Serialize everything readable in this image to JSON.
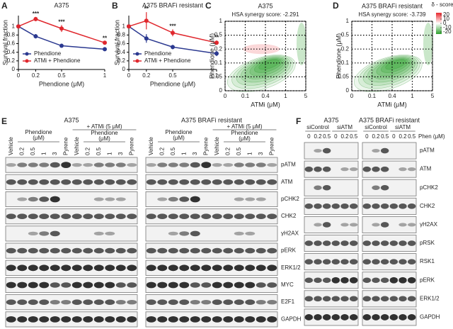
{
  "chart_data": [
    {
      "type": "line",
      "panel_label": "A",
      "title": "A375",
      "xlabel": "Phendione (μM)",
      "ylabel": "Survival fraction",
      "x": [
        0,
        0.2,
        0.5,
        1
      ],
      "xlim": [
        0,
        1
      ],
      "xticks": [
        0,
        0.2,
        0.5,
        1
      ],
      "ylim": [
        0,
        1.25
      ],
      "yticks": [
        0,
        0.2,
        0.4,
        0.6,
        0.8,
        1
      ],
      "series": [
        {
          "name": "Phendione",
          "color": "#2b3990",
          "values": [
            1,
            0.77,
            0.55,
            0.47
          ],
          "errors": [
            0,
            0.05,
            0.04,
            0.04
          ]
        },
        {
          "name": "ATMi + Phendione",
          "color": "#e0282e",
          "values": [
            1,
            1.17,
            0.95,
            0.62
          ],
          "errors": [
            0,
            0.05,
            0.08,
            0.03
          ]
        }
      ],
      "significance": [
        null,
        "***",
        "***",
        "**"
      ],
      "legend": "lower left"
    },
    {
      "type": "line",
      "panel_label": "B",
      "title": "A375 BRAFi resistant",
      "xlabel": "Phendione (μM)",
      "ylabel": "Survival fraction",
      "x": [
        0,
        0.2,
        0.5,
        1
      ],
      "xlim": [
        0,
        1
      ],
      "xticks": [
        0,
        0.2,
        0.5,
        1
      ],
      "ylim": [
        0,
        1.25
      ],
      "yticks": [
        0,
        0.2,
        0.4,
        0.6,
        0.8,
        1
      ],
      "series": [
        {
          "name": "Phendione",
          "color": "#2b3990",
          "values": [
            1,
            0.72,
            0.52,
            0.37
          ],
          "errors": [
            0,
            0.1,
            0.05,
            0.06
          ]
        },
        {
          "name": "ATMi + Phendione",
          "color": "#e0282e",
          "values": [
            1,
            1.13,
            0.85,
            0.62
          ],
          "errors": [
            0,
            0.2,
            0.08,
            0.05
          ]
        }
      ],
      "significance": [
        null,
        "**",
        "***",
        "**"
      ],
      "legend": "lower left"
    },
    {
      "type": "contour",
      "panel_label": "C",
      "title": "A375",
      "subtitle": "HSA synergy score: -2.291",
      "xlabel": "ATMi (μM)",
      "ylabel": "Phendione (μM)",
      "x_categories": [
        "0",
        "0.1",
        "0.4",
        "1",
        "5"
      ],
      "y_categories": [
        "0",
        "0.05",
        "0.1",
        "0.2",
        "0.5",
        "1"
      ],
      "grid": true
    },
    {
      "type": "contour",
      "panel_label": "D",
      "title": "A375 BRAFi resistant",
      "subtitle": "HSA synergy score: -3.739",
      "xlabel": "ATMi (μM)",
      "ylabel": "Phendione (μM)",
      "x_categories": [
        "0",
        "0.1",
        "0.4",
        "1",
        "5"
      ],
      "y_categories": [
        "0",
        "0.05",
        "0.1",
        "0.2",
        "0.5",
        "1"
      ],
      "grid": true,
      "colorbar": {
        "title": "δ - score",
        "lim": [
          -25,
          25
        ],
        "ticks": [
          20,
          10,
          0,
          -10,
          -20
        ],
        "colors": [
          "#2ca02c",
          "#ffffff",
          "#e8282e"
        ]
      }
    }
  ],
  "blots": {
    "E": {
      "label": "E",
      "titles": [
        "A375",
        "A375 BRAFi resistant"
      ],
      "lanes": [
        "Vehicle",
        "0.2",
        "0.5",
        "1",
        "3",
        "Pyrene",
        "Vehicle",
        "0.2",
        "0.5",
        "1",
        "3",
        "Pyrene"
      ],
      "dose_label": [
        "Phendione",
        "(μM)"
      ],
      "treatment": "+ ATMi (5 μM)",
      "rows": [
        "pATM",
        "ATM",
        "pCHK2",
        "CHK2",
        "γH2AX",
        "pERK",
        "ERK1/2",
        "MYC",
        "E2F1",
        "GAPDH"
      ]
    },
    "F": {
      "label": "F",
      "titles": [
        "A375",
        "A375 BRAFi resistant"
      ],
      "groups": [
        "siControl",
        "siATM"
      ],
      "lanes": [
        "0",
        "0.2",
        "0.5",
        "0",
        "0.2",
        "0.5"
      ],
      "dose_label": "Phen (μM)",
      "rows": [
        "pATM",
        "ATM",
        "pCHK2",
        "CHK2",
        "γH2AX",
        "pRSK",
        "RSK1",
        "pERK",
        "ERK1/2",
        "GAPDH"
      ]
    }
  }
}
